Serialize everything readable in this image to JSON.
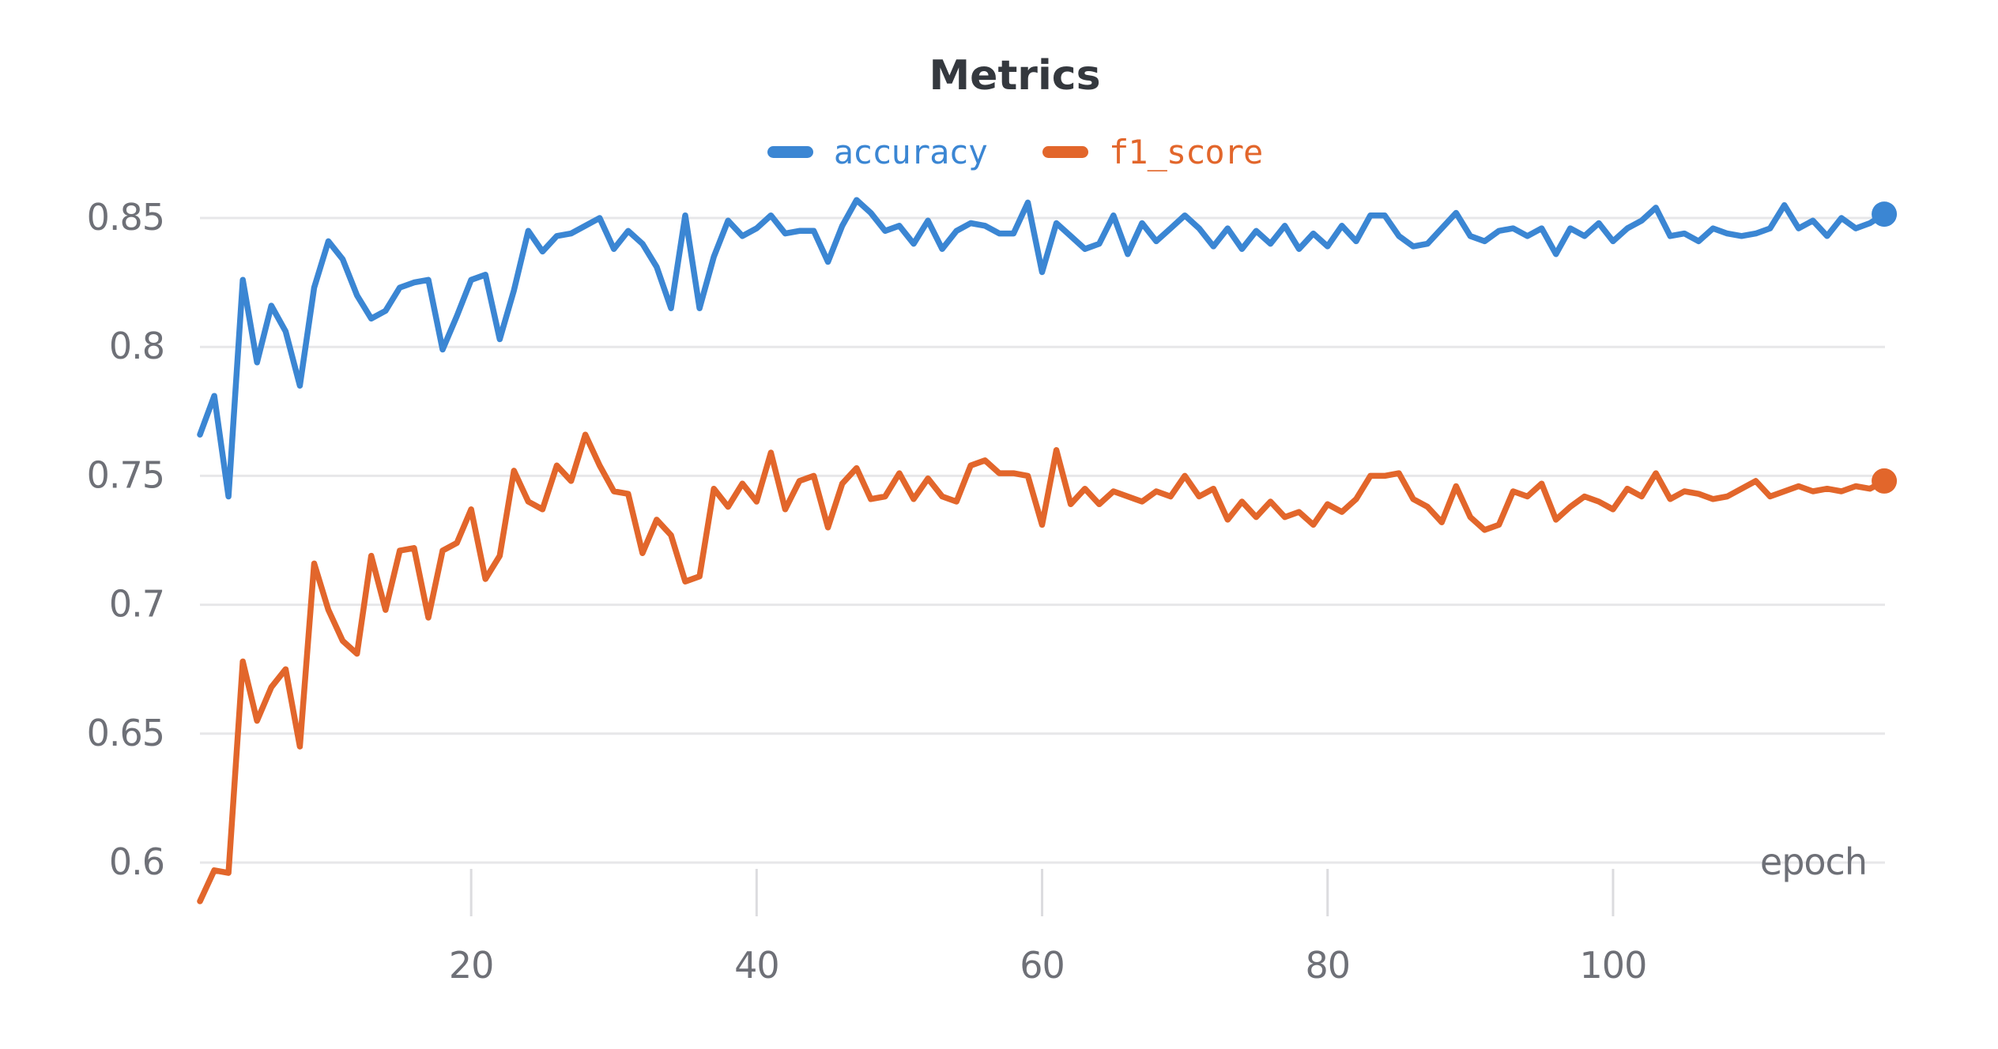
{
  "title": "Metrics",
  "legend": [
    {
      "label": "accuracy",
      "color": "#3b86d3"
    },
    {
      "label": "f1_score",
      "color": "#e2662b"
    }
  ],
  "colors": {
    "grid": "#e7e7e9",
    "tick_mark": "#dcdcdf",
    "axis_text": "#6e7077",
    "title_text": "#34383e",
    "background": "#ffffff"
  },
  "chart_data": {
    "type": "line",
    "title": "Metrics",
    "xlabel": "epoch",
    "ylabel": "",
    "x_start_epoch": 1,
    "x_ticks": [
      20,
      40,
      60,
      80,
      100
    ],
    "y_ticks": [
      0.6,
      0.65,
      0.7,
      0.75,
      0.8,
      0.85
    ],
    "ylim": [
      0.578,
      0.872
    ],
    "grid": "horizontal-only",
    "legend_position": "top-center",
    "end_point_dot": true,
    "series": [
      {
        "name": "accuracy",
        "color": "#3b86d3",
        "values": [
          0.766,
          0.781,
          0.742,
          0.826,
          0.794,
          0.816,
          0.806,
          0.785,
          0.823,
          0.841,
          0.834,
          0.82,
          0.811,
          0.814,
          0.823,
          0.825,
          0.826,
          0.799,
          0.812,
          0.826,
          0.828,
          0.803,
          0.822,
          0.845,
          0.837,
          0.843,
          0.844,
          0.847,
          0.85,
          0.838,
          0.845,
          0.84,
          0.831,
          0.815,
          0.851,
          0.815,
          0.835,
          0.849,
          0.843,
          0.846,
          0.851,
          0.844,
          0.845,
          0.845,
          0.833,
          0.847,
          0.857,
          0.852,
          0.845,
          0.847,
          0.84,
          0.849,
          0.838,
          0.845,
          0.848,
          0.847,
          0.844,
          0.844,
          0.856,
          0.829,
          0.848,
          0.843,
          0.838,
          0.84,
          0.851,
          0.836,
          0.848,
          0.841,
          0.846,
          0.851,
          0.846,
          0.839,
          0.846,
          0.838,
          0.845,
          0.84,
          0.847,
          0.838,
          0.844,
          0.839,
          0.847,
          0.841,
          0.851,
          0.851,
          0.843,
          0.839,
          0.84,
          0.846,
          0.852,
          0.843,
          0.841,
          0.845,
          0.846,
          0.843,
          0.846,
          0.836,
          0.846,
          0.843,
          0.848,
          0.841,
          0.846,
          0.849,
          0.854,
          0.843,
          0.844,
          0.841,
          0.846,
          0.844,
          0.843,
          0.844,
          0.846,
          0.855,
          0.846,
          0.849,
          0.843,
          0.85,
          0.846,
          0.848,
          0.8515
        ]
      },
      {
        "name": "f1_score",
        "color": "#e2662b",
        "values": [
          0.585,
          0.597,
          0.596,
          0.678,
          0.655,
          0.668,
          0.675,
          0.645,
          0.716,
          0.698,
          0.686,
          0.681,
          0.719,
          0.698,
          0.721,
          0.722,
          0.695,
          0.721,
          0.724,
          0.737,
          0.71,
          0.719,
          0.752,
          0.74,
          0.737,
          0.754,
          0.748,
          0.766,
          0.754,
          0.744,
          0.743,
          0.72,
          0.733,
          0.727,
          0.709,
          0.711,
          0.745,
          0.738,
          0.747,
          0.74,
          0.759,
          0.737,
          0.748,
          0.75,
          0.73,
          0.747,
          0.753,
          0.741,
          0.742,
          0.751,
          0.741,
          0.749,
          0.742,
          0.74,
          0.754,
          0.756,
          0.751,
          0.751,
          0.75,
          0.731,
          0.76,
          0.739,
          0.745,
          0.739,
          0.744,
          0.742,
          0.74,
          0.744,
          0.742,
          0.75,
          0.742,
          0.745,
          0.733,
          0.74,
          0.734,
          0.74,
          0.734,
          0.736,
          0.731,
          0.739,
          0.736,
          0.741,
          0.75,
          0.75,
          0.751,
          0.741,
          0.738,
          0.732,
          0.746,
          0.734,
          0.729,
          0.731,
          0.744,
          0.742,
          0.747,
          0.733,
          0.738,
          0.742,
          0.74,
          0.737,
          0.745,
          0.742,
          0.751,
          0.741,
          0.744,
          0.743,
          0.741,
          0.742,
          0.745,
          0.748,
          0.742,
          0.744,
          0.746,
          0.744,
          0.745,
          0.744,
          0.746,
          0.745,
          0.748
        ]
      }
    ]
  }
}
